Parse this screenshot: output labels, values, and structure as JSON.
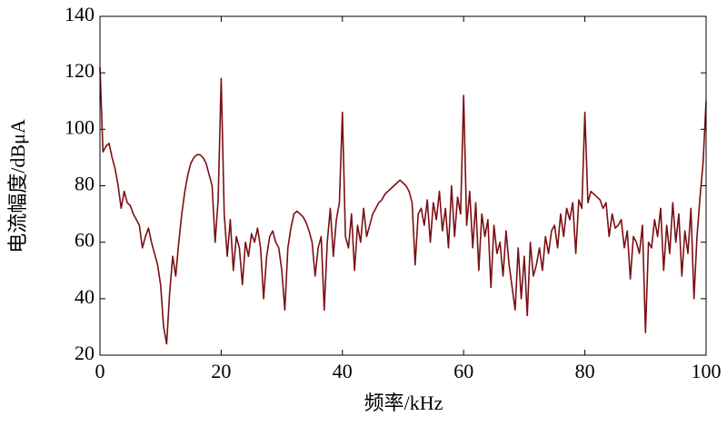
{
  "chart_data": {
    "type": "line",
    "x_label": "频率/kHz",
    "y_label": "电流幅度/dBμA",
    "color": "#7b0f14",
    "xlim": [
      0,
      100
    ],
    "xticks": [
      0,
      20,
      40,
      60,
      80,
      100
    ],
    "ylim": [
      20,
      140
    ],
    "yticks": [
      20,
      40,
      60,
      80,
      100,
      120,
      140
    ],
    "x": [
      0,
      0.5,
      1,
      1.5,
      2,
      2.5,
      3,
      3.5,
      4,
      4.5,
      5,
      5.5,
      6,
      6.5,
      7,
      7.5,
      8,
      8.5,
      9,
      9.5,
      10,
      10.5,
      11,
      11.5,
      12,
      12.5,
      13,
      13.5,
      14,
      14.5,
      15,
      15.5,
      16,
      16.5,
      17,
      17.5,
      18,
      18.5,
      19,
      19.5,
      20,
      20.5,
      21,
      21.5,
      22,
      22.5,
      23,
      23.5,
      24,
      24.5,
      25,
      25.5,
      26,
      26.5,
      27,
      27.5,
      28,
      28.5,
      29,
      29.5,
      30,
      30.5,
      31,
      31.5,
      32,
      32.5,
      33,
      33.5,
      34,
      34.5,
      35,
      35.5,
      36,
      36.5,
      37,
      37.5,
      38,
      38.5,
      39,
      39.5,
      40,
      40.5,
      41,
      41.5,
      42,
      42.5,
      43,
      43.5,
      44,
      44.5,
      45,
      45.5,
      46,
      46.5,
      47,
      47.5,
      48,
      48.5,
      49,
      49.5,
      50,
      50.5,
      51,
      51.5,
      52,
      52.5,
      53,
      53.5,
      54,
      54.5,
      55,
      55.5,
      56,
      56.5,
      57,
      57.5,
      58,
      58.5,
      59,
      59.5,
      60,
      60.5,
      61,
      61.5,
      62,
      62.5,
      63,
      63.5,
      64,
      64.5,
      65,
      65.5,
      66,
      66.5,
      67,
      67.5,
      68,
      68.5,
      69,
      69.5,
      70,
      70.5,
      71,
      71.5,
      72,
      72.5,
      73,
      73.5,
      74,
      74.5,
      75,
      75.5,
      76,
      76.5,
      77,
      77.5,
      78,
      78.5,
      79,
      79.5,
      80,
      80.5,
      81,
      81.5,
      82,
      82.5,
      83,
      83.5,
      84,
      84.5,
      85,
      85.5,
      86,
      86.5,
      87,
      87.5,
      88,
      88.5,
      89,
      89.5,
      90,
      90.5,
      91,
      91.5,
      92,
      92.5,
      93,
      93.5,
      94,
      94.5,
      95,
      95.5,
      96,
      96.5,
      97,
      97.5,
      98,
      98.5,
      99,
      99.5,
      100
    ],
    "values": [
      122,
      92,
      94,
      95,
      90,
      86,
      80,
      72,
      78,
      74,
      73,
      70,
      68,
      66,
      58,
      62,
      65,
      60,
      56,
      52,
      45,
      30,
      24,
      42,
      55,
      48,
      60,
      70,
      78,
      84,
      88,
      90,
      91,
      91,
      90,
      88,
      84,
      80,
      60,
      75,
      118,
      70,
      55,
      68,
      50,
      62,
      58,
      45,
      60,
      55,
      63,
      60,
      65,
      58,
      40,
      55,
      62,
      64,
      60,
      58,
      50,
      36,
      58,
      65,
      70,
      71,
      70,
      69,
      67,
      64,
      60,
      48,
      58,
      62,
      36,
      60,
      72,
      55,
      68,
      74,
      106,
      62,
      58,
      70,
      50,
      66,
      60,
      72,
      62,
      66,
      70,
      72,
      74,
      75,
      77,
      78,
      79,
      80,
      81,
      82,
      81,
      80,
      78,
      74,
      52,
      70,
      72,
      66,
      75,
      60,
      74,
      68,
      78,
      64,
      72,
      58,
      80,
      62,
      76,
      70,
      112,
      66,
      78,
      58,
      74,
      50,
      70,
      62,
      68,
      44,
      66,
      56,
      60,
      48,
      64,
      52,
      44,
      36,
      58,
      40,
      55,
      34,
      60,
      48,
      52,
      58,
      50,
      62,
      56,
      64,
      66,
      58,
      70,
      62,
      72,
      68,
      74,
      56,
      75,
      72,
      106,
      74,
      78,
      77,
      76,
      75,
      72,
      74,
      62,
      70,
      65,
      66,
      68,
      58,
      64,
      47,
      62,
      60,
      56,
      66,
      28,
      60,
      58,
      68,
      62,
      72,
      50,
      66,
      56,
      74,
      60,
      70,
      48,
      64,
      56,
      72,
      40,
      62,
      76,
      88,
      110
    ]
  }
}
